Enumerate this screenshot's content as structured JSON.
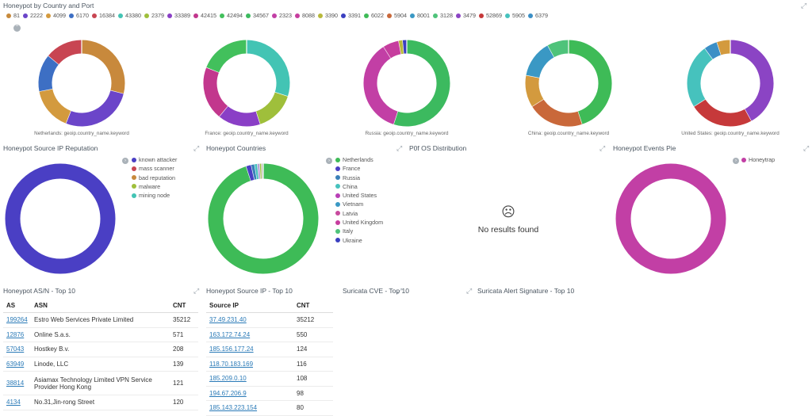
{
  "panels": {
    "country_port": {
      "title": "Honeypot by Country and Port",
      "legend": [
        {
          "label": "81",
          "color": "#c78a3c"
        },
        {
          "label": "2222",
          "color": "#6b45c9"
        },
        {
          "label": "4099",
          "color": "#d49a3e"
        },
        {
          "label": "6170",
          "color": "#3d6fc4"
        },
        {
          "label": "16384",
          "color": "#c84552"
        },
        {
          "label": "43380",
          "color": "#43c4b4"
        },
        {
          "label": "2379",
          "color": "#9fbf3b"
        },
        {
          "label": "33389",
          "color": "#8a3fc6"
        },
        {
          "label": "42415",
          "color": "#c2378d"
        },
        {
          "label": "42494",
          "color": "#42c05c"
        },
        {
          "label": "34567",
          "color": "#3cba5f"
        },
        {
          "label": "2323",
          "color": "#c23fa5"
        },
        {
          "label": "8088",
          "color": "#c63d9e"
        },
        {
          "label": "3390",
          "color": "#b8b93b"
        },
        {
          "label": "3391",
          "color": "#3a3fc0"
        },
        {
          "label": "6022",
          "color": "#3ebb57"
        },
        {
          "label": "5904",
          "color": "#c9683a"
        },
        {
          "label": "8001",
          "color": "#3a98c4"
        },
        {
          "label": "3128",
          "color": "#4ec37a"
        },
        {
          "label": "3479",
          "color": "#8b44c4"
        },
        {
          "label": "52869",
          "color": "#c6393a"
        },
        {
          "label": "5905",
          "color": "#46c2bd"
        },
        {
          "label": "6379",
          "color": "#3b8fc6"
        }
      ],
      "donuts": [
        {
          "caption": "Netherlands: geoip.country_name.keyword",
          "slices": [
            {
              "v": 29,
              "c": "#c8893c"
            },
            {
              "v": 27,
              "c": "#6b45c9"
            },
            {
              "v": 16,
              "c": "#d39a3e"
            },
            {
              "v": 14,
              "c": "#3d6fc4"
            },
            {
              "v": 14,
              "c": "#c84552"
            }
          ]
        },
        {
          "caption": "France: geoip.country_name.keyword",
          "slices": [
            {
              "v": 30,
              "c": "#43c4b4"
            },
            {
              "v": 15,
              "c": "#9fbf3b"
            },
            {
              "v": 16,
              "c": "#8a3fc6"
            },
            {
              "v": 20,
              "c": "#c2378d"
            },
            {
              "v": 19,
              "c": "#42c05c"
            }
          ]
        },
        {
          "caption": "Russia: geoip.country_name.keyword",
          "slices": [
            {
              "v": 55,
              "c": "#3cba5f"
            },
            {
              "v": 36,
              "c": "#c23fa5"
            },
            {
              "v": 6,
              "c": "#c63d9e"
            },
            {
              "v": 1.5,
              "c": "#b8b93b"
            },
            {
              "v": 1.5,
              "c": "#3a3fc0"
            }
          ]
        },
        {
          "caption": "China: geoip.country_name.keyword",
          "slices": [
            {
              "v": 45,
              "c": "#3ebb57"
            },
            {
              "v": 21,
              "c": "#c9683a"
            },
            {
              "v": 12,
              "c": "#d39a3e"
            },
            {
              "v": 14,
              "c": "#3a98c4"
            },
            {
              "v": 8,
              "c": "#4ec37a"
            }
          ]
        },
        {
          "caption": "United States: geoip.country_name.keyword",
          "slices": [
            {
              "v": 42,
              "c": "#8b44c4"
            },
            {
              "v": 24,
              "c": "#c6393a"
            },
            {
              "v": 24,
              "c": "#46c2bd"
            },
            {
              "v": 5,
              "c": "#3b8fc6"
            },
            {
              "v": 5,
              "c": "#d39a3e"
            }
          ]
        }
      ]
    },
    "ip_reputation": {
      "title": "Honeypot Source IP Reputation",
      "legend": [
        {
          "label": "known attacker",
          "color": "#4a3fc4"
        },
        {
          "label": "mass scanner",
          "color": "#c84552"
        },
        {
          "label": "bad reputation",
          "color": "#c8893c"
        },
        {
          "label": "malware",
          "color": "#9fbf3b"
        },
        {
          "label": "mining node",
          "color": "#43c4b4"
        }
      ],
      "slices": [
        {
          "v": 100,
          "c": "#4a3fc4"
        }
      ]
    },
    "countries": {
      "title": "Honeypot Countries",
      "legend": [
        {
          "label": "Netherlands",
          "color": "#3ebb57"
        },
        {
          "label": "France",
          "color": "#4a3fc4"
        },
        {
          "label": "Russia",
          "color": "#3a80b8"
        },
        {
          "label": "China",
          "color": "#46c2bd"
        },
        {
          "label": "United States",
          "color": "#b83fb6"
        },
        {
          "label": "Vietnam",
          "color": "#3a98c4"
        },
        {
          "label": "Latvia",
          "color": "#c84a9e"
        },
        {
          "label": "United Kingdom",
          "color": "#c63d9e"
        },
        {
          "label": "Italy",
          "color": "#4ec37a"
        },
        {
          "label": "Ukraine",
          "color": "#3a3fc0"
        }
      ],
      "slices": [
        {
          "v": 95,
          "c": "#3ebb57"
        },
        {
          "v": 1.5,
          "c": "#4a3fc4"
        },
        {
          "v": 1,
          "c": "#3a80b8"
        },
        {
          "v": 0.8,
          "c": "#46c2bd"
        },
        {
          "v": 0.7,
          "c": "#b8a0d8"
        },
        {
          "v": 0.5,
          "c": "#9fbf3b"
        },
        {
          "v": 0.5,
          "c": "#c0c0c0"
        }
      ]
    },
    "p0f": {
      "title": "P0f OS Distribution",
      "no_results": "No results found"
    },
    "events_pie": {
      "title": "Honeypot Events Pie",
      "legend": [
        {
          "label": "Honeytrap",
          "color": "#c23fa5"
        }
      ],
      "slices": [
        {
          "v": 100,
          "c": "#c23fa5"
        }
      ]
    },
    "asn": {
      "title": "Honeypot AS/N - Top 10",
      "headers": {
        "as": "AS",
        "asn": "ASN",
        "cnt": "CNT"
      },
      "rows": [
        {
          "as": "199264",
          "asn": "Estro Web Services Private Limited",
          "cnt": "35212"
        },
        {
          "as": "12876",
          "asn": "Online S.a.s.",
          "cnt": "571"
        },
        {
          "as": "57043",
          "asn": "Hostkey B.v.",
          "cnt": "208"
        },
        {
          "as": "63949",
          "asn": "Linode, LLC",
          "cnt": "139"
        },
        {
          "as": "38814",
          "asn": "Asiamax Technology Limited VPN Service Provider Hong Kong",
          "cnt": "121"
        },
        {
          "as": "4134",
          "asn": "No.31,Jin-rong Street",
          "cnt": "120"
        }
      ]
    },
    "source_ip": {
      "title": "Honeypot Source IP - Top 10",
      "headers": {
        "ip": "Source IP",
        "cnt": "CNT"
      },
      "rows": [
        {
          "ip": "37.49.231.40",
          "cnt": "35212"
        },
        {
          "ip": "163.172.74.24",
          "cnt": "550"
        },
        {
          "ip": "185.156.177.24",
          "cnt": "124"
        },
        {
          "ip": "118.70.183.169",
          "cnt": "116"
        },
        {
          "ip": "185.209.0.10",
          "cnt": "108"
        },
        {
          "ip": "194.67.206.9",
          "cnt": "98"
        },
        {
          "ip": "185.143.223.154",
          "cnt": "80"
        }
      ]
    },
    "suricata_cve": {
      "title": "Suricata CVE - Top 10"
    },
    "suricata_sig": {
      "title": "Suricata Alert Signature - Top 10"
    }
  }
}
